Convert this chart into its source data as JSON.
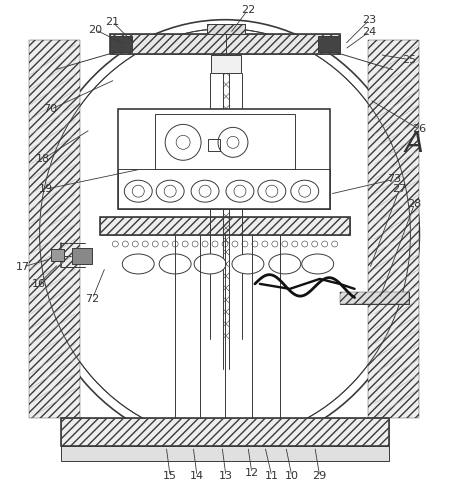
{
  "bg_color": "#ffffff",
  "line_color": "#3a3a3a",
  "label_color": "#333333",
  "label_fontsize": 8.0,
  "A_fontsize": 20,
  "fig_width": 4.5,
  "fig_height": 4.99
}
